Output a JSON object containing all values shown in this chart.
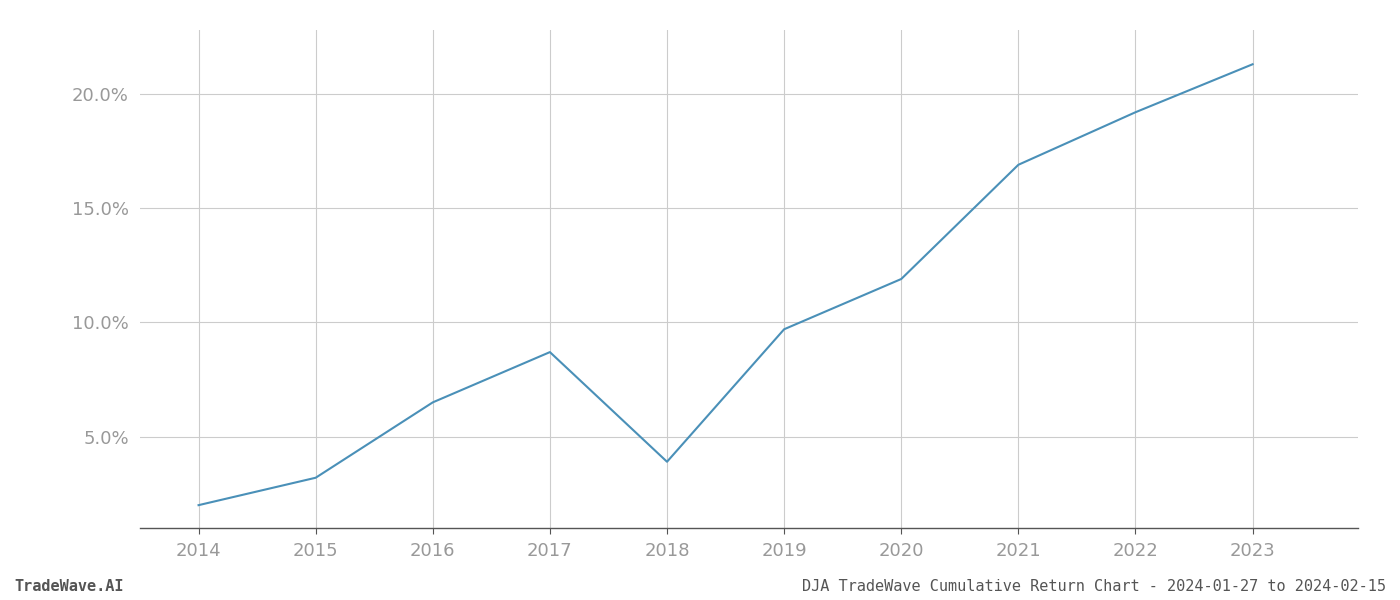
{
  "x_years": [
    2014,
    2015,
    2016,
    2017,
    2018,
    2019,
    2020,
    2021,
    2022,
    2023
  ],
  "y_values": [
    2.0,
    3.2,
    6.5,
    8.7,
    3.9,
    9.7,
    11.9,
    16.9,
    19.2,
    21.3
  ],
  "line_color": "#4a90b8",
  "line_width": 1.5,
  "background_color": "#ffffff",
  "grid_color": "#cccccc",
  "tick_color": "#999999",
  "spine_color": "#555555",
  "yticks": [
    5.0,
    10.0,
    15.0,
    20.0
  ],
  "ylim": [
    1.0,
    22.8
  ],
  "xlim": [
    2013.5,
    2023.9
  ],
  "xticks": [
    2014,
    2015,
    2016,
    2017,
    2018,
    2019,
    2020,
    2021,
    2022,
    2023
  ],
  "footer_left": "TradeWave.AI",
  "footer_right": "DJA TradeWave Cumulative Return Chart - 2024-01-27 to 2024-02-15",
  "footer_color": "#555555",
  "footer_fontsize": 11,
  "tick_fontsize": 13
}
